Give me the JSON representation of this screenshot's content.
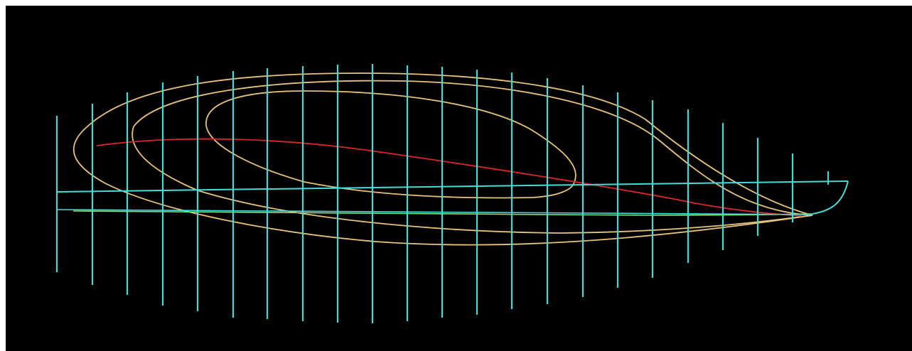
{
  "view": {
    "background_color": "#000000",
    "frame_color": "#ffffff"
  },
  "colors": {
    "station_lines": "#43dcd6",
    "waterlines": "#e8c27f",
    "sheer_line": "#d9282a",
    "keel_line": "#7ee07a",
    "profile_outline": "#43dcd6"
  },
  "line_groups": {
    "stations": {
      "count": 22
    },
    "waterlines": {
      "count": 3
    },
    "sheer": {
      "count": 1
    },
    "keel": {
      "count": 1
    }
  }
}
